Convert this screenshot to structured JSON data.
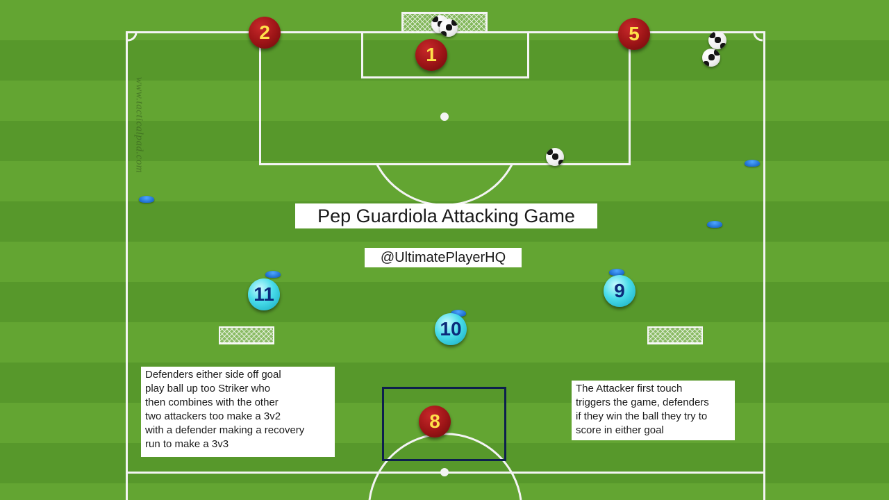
{
  "title": "Pep Guardiola Attacking Game",
  "handle": "@UltimatePlayerHQ",
  "watermark": "www.tacticalpad.com",
  "players": {
    "defenders": [
      {
        "number": "1"
      },
      {
        "number": "2"
      },
      {
        "number": "5"
      },
      {
        "number": "8"
      }
    ],
    "attackers": [
      {
        "number": "11"
      },
      {
        "number": "10"
      },
      {
        "number": "9"
      }
    ]
  },
  "notes": {
    "left": "Defenders either side off goal\nplay ball up too Striker who\nthen combines with the other\ntwo attackers too make a 3v2\nwith a defender making a recovery\nrun to make a 3v3",
    "right": "The Attacker first touch\ntriggers the game, defenders\nif they win the ball they try to\nscore in either goal"
  },
  "colors": {
    "pitch_light": "#63a532",
    "pitch_dark": "#57982b",
    "defender": "#9b1416",
    "defender_number": "#ffe14a",
    "attacker": "#49dcea",
    "attacker_number": "#0b2a7a",
    "cone": "#1766c9",
    "box_outline": "#0d1f4d"
  },
  "icons": [
    "football-icon",
    "cone-icon",
    "mini-goal-icon",
    "goal-net-icon"
  ]
}
